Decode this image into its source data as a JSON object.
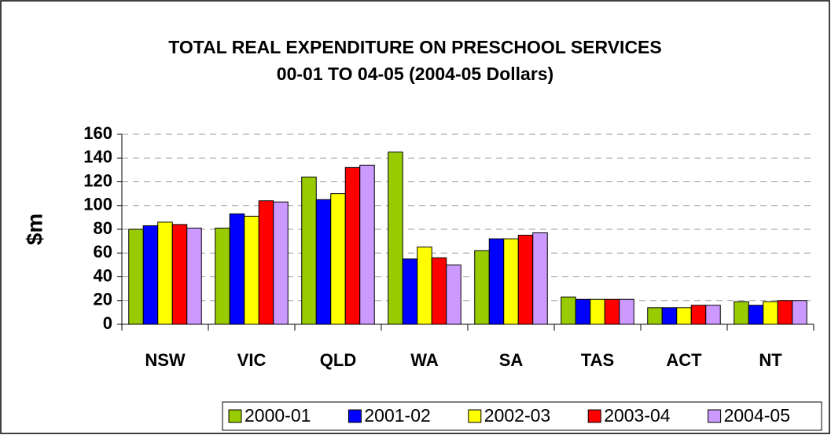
{
  "chart_data": {
    "type": "bar",
    "title": "TOTAL REAL EXPENDITURE ON PRESCHOOL SERVICES",
    "subtitle": "00-01 TO 04-05 (2004-05 Dollars)",
    "y_label": "$m",
    "categories": [
      "NSW",
      "VIC",
      "QLD",
      "WA",
      "SA",
      "TAS",
      "ACT",
      "NT"
    ],
    "series": [
      {
        "name": "2000-01",
        "color": "#99cc00",
        "values": [
          80,
          81,
          124,
          145,
          62,
          23,
          14,
          19
        ]
      },
      {
        "name": "2001-02",
        "color": "#0000ff",
        "values": [
          83,
          93,
          105,
          55,
          72,
          21,
          14,
          16
        ]
      },
      {
        "name": "2002-03",
        "color": "#ffff00",
        "values": [
          86,
          91,
          110,
          65,
          72,
          21,
          14,
          19
        ]
      },
      {
        "name": "2003-04",
        "color": "#ff0000",
        "values": [
          84,
          104,
          132,
          56,
          75,
          21,
          16,
          20
        ]
      },
      {
        "name": "2004-05",
        "color": "#cc99ff",
        "values": [
          81,
          103,
          134,
          50,
          77,
          21,
          16,
          20
        ]
      }
    ],
    "ylim": [
      0,
      160
    ],
    "yticks": [
      0,
      20,
      40,
      60,
      80,
      100,
      120,
      140,
      160
    ],
    "grid": true,
    "legend": "bottom-right"
  }
}
